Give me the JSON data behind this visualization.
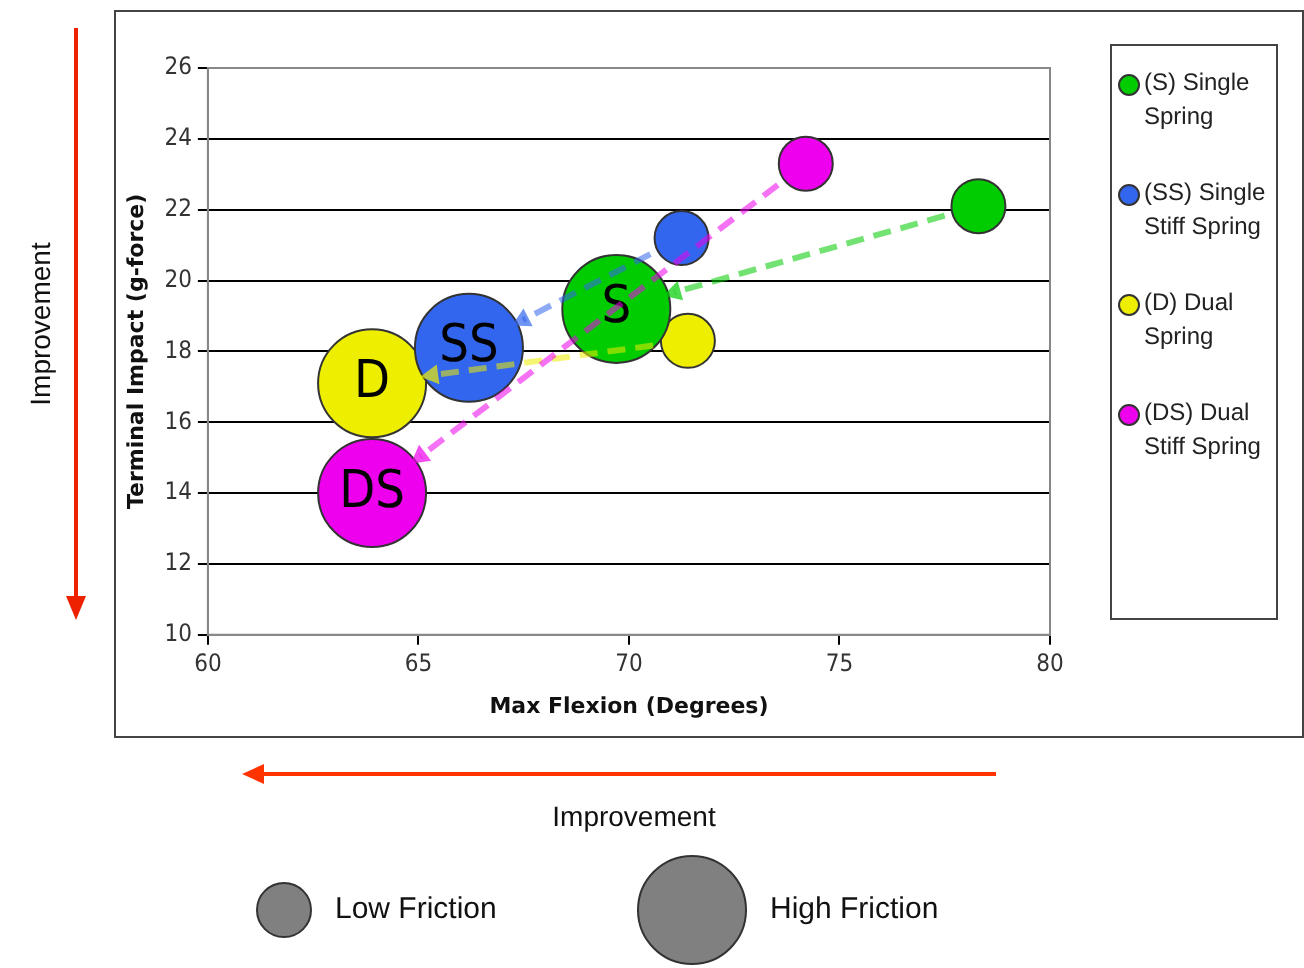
{
  "chart_data": {
    "type": "bubble",
    "xlabel": "Max Flexion (Degrees)",
    "ylabel": "Terminal Impact (g-force)",
    "xlim": [
      60,
      80
    ],
    "xticks": [
      60,
      65,
      70,
      75,
      80
    ],
    "ylim": [
      10,
      26
    ],
    "yticks": [
      10,
      12,
      14,
      16,
      18,
      20,
      22,
      24,
      26
    ],
    "series": [
      {
        "name": "(S) Single Spring",
        "color": "#00cc00",
        "x": [
          78.3,
          69.7
        ],
        "values": [
          22.1,
          19.2
        ],
        "sizes": [
          0.25,
          1
        ]
      },
      {
        "name": "(SS) Single Stiff Spring",
        "color": "#3366ee",
        "x": [
          71.25,
          66.2
        ],
        "values": [
          21.2,
          18.1
        ],
        "sizes": [
          0.25,
          1
        ]
      },
      {
        "name": "(D) Dual Spring",
        "color": "#eeee00",
        "x": [
          71.4,
          63.9
        ],
        "values": [
          18.3,
          17.1
        ],
        "sizes": [
          0.25,
          1
        ]
      },
      {
        "name": "(DS) Dual Stiff Spring",
        "color": "#ee00ee",
        "x": [
          74.2,
          63.9
        ],
        "values": [
          23.3,
          14.0
        ],
        "sizes": [
          0.25,
          1
        ]
      }
    ],
    "size_legend": [
      {
        "value": 0.25,
        "label": "Low Friction"
      },
      {
        "value": 1,
        "label": "High Friction"
      }
    ],
    "grid": "y",
    "legend": "right",
    "annotations": [
      {
        "text": "S",
        "x": 69.7,
        "y": 19.2
      },
      {
        "text": "SS",
        "x": 66.2,
        "y": 18.1
      },
      {
        "text": "D",
        "x": 63.9,
        "y": 17.1
      },
      {
        "text": "DS",
        "x": 63.9,
        "y": 14.0
      },
      "Improvement",
      "Improvement"
    ]
  }
}
